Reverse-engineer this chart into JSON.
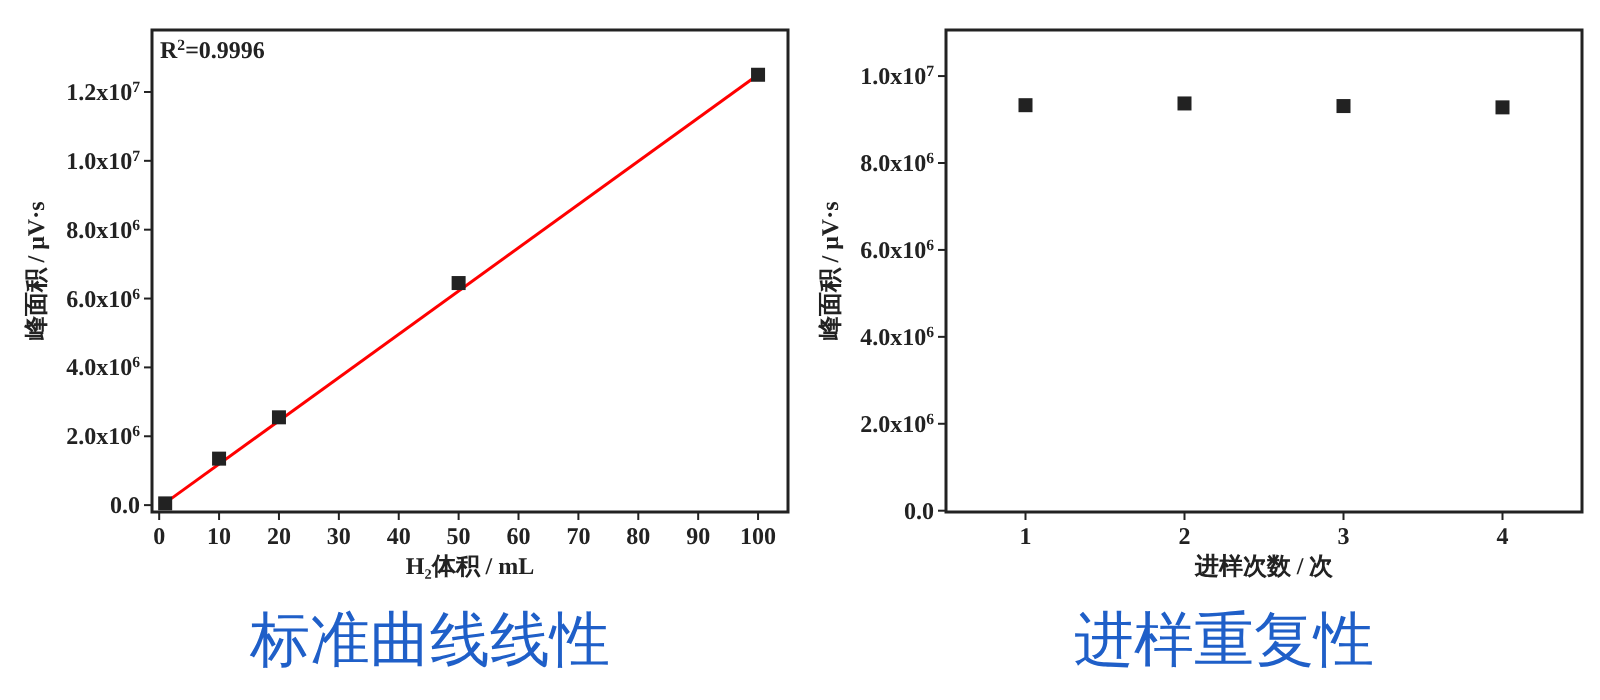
{
  "chart_data": [
    {
      "type": "scatter",
      "title": "标准曲线线性",
      "xlabel": "H₂体积 / mL",
      "ylabel": "峰面积 / μV·s",
      "annotations": [
        "R$^{2}$=0.9996"
      ],
      "xlim": [
        -1.2,
        105
      ],
      "ylim": [
        -200000,
        13800000
      ],
      "xticks": [
        0,
        10,
        20,
        30,
        40,
        50,
        60,
        70,
        80,
        90,
        100
      ],
      "yticks": [
        {
          "value": 0,
          "label": "0.0"
        },
        {
          "value": 2000000,
          "label": "2.0x10$^{6}$"
        },
        {
          "value": 4000000,
          "label": "4.0x10$^{6}$"
        },
        {
          "value": 6000000,
          "label": "6.0x10$^{6}$"
        },
        {
          "value": 8000000,
          "label": "8.0x10$^{6}$"
        },
        {
          "value": 10000000,
          "label": "1.0x10$^{7}$"
        },
        {
          "value": 12000000,
          "label": "1.2x10$^{7}$"
        }
      ],
      "grid": false,
      "marker": "square",
      "series": [
        {
          "type": "line",
          "color": "#ff0000",
          "marker": "none",
          "line_style": "solid",
          "x": [
            0.5,
            100
          ],
          "values": [
            0,
            12500000
          ]
        },
        {
          "color": "#222222",
          "x": [
            1,
            10,
            20,
            50,
            100
          ],
          "values": [
            50000,
            1350000,
            2550000,
            6450000,
            12500000
          ]
        }
      ]
    },
    {
      "type": "scatter",
      "title": "进样重复性",
      "xlabel": "进样次数 / 次",
      "ylabel": "峰面积 / μV·s",
      "xlim": [
        0.5,
        4.5
      ],
      "ylim": [
        -30000,
        11060000
      ],
      "xticks": [
        1,
        2,
        3,
        4
      ],
      "yticks": [
        {
          "value": 0,
          "label": "0.0"
        },
        {
          "value": 2000000,
          "label": "2.0x10$^{6}$"
        },
        {
          "value": 4000000,
          "label": "4.0x10$^{6}$"
        },
        {
          "value": 6000000,
          "label": "6.0x10$^{6}$"
        },
        {
          "value": 8000000,
          "label": "8.0x10$^{6}$"
        },
        {
          "value": 10000000,
          "label": "1.0x10$^{7}$"
        }
      ],
      "grid": false,
      "marker": "square",
      "series": [
        {
          "color": "#222222",
          "x": [
            1,
            2,
            3,
            4
          ],
          "values": [
            9330000,
            9370000,
            9310000,
            9280000
          ]
        }
      ]
    }
  ]
}
